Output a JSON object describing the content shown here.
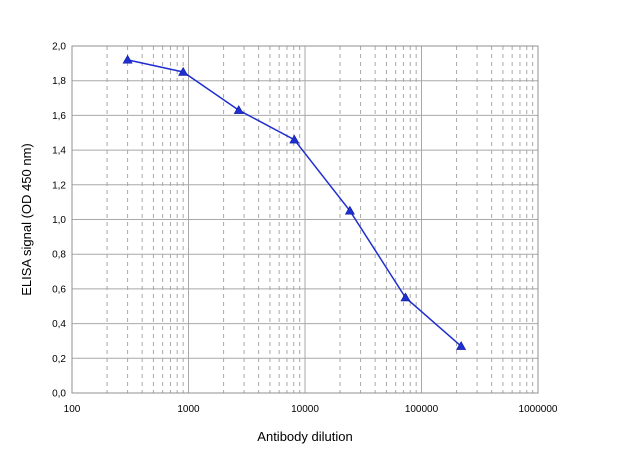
{
  "chart_data": {
    "type": "line",
    "title": "",
    "xlabel": "Antibody dilution",
    "ylabel": "ELISA signal (OD 450 nm)",
    "x_scale": "log",
    "xlim": [
      100,
      1000000
    ],
    "ylim": [
      0.0,
      2.0
    ],
    "x_tick_labels": [
      "100",
      "1000",
      "10000",
      "100000",
      "1000000"
    ],
    "y_tick_labels": [
      "0,0",
      "0,2",
      "0,4",
      "0,6",
      "0,8",
      "1,0",
      "1,2",
      "1,4",
      "1,6",
      "1,8",
      "2,0"
    ],
    "grid": true,
    "legend": "none",
    "series": [
      {
        "x": [
          300,
          900,
          2700,
          8100,
          24300,
          72900,
          218700
        ],
        "y": [
          1.92,
          1.85,
          1.63,
          1.46,
          1.05,
          0.55,
          0.27
        ],
        "color": "#1f2fd0",
        "marker": "triangle"
      }
    ]
  }
}
